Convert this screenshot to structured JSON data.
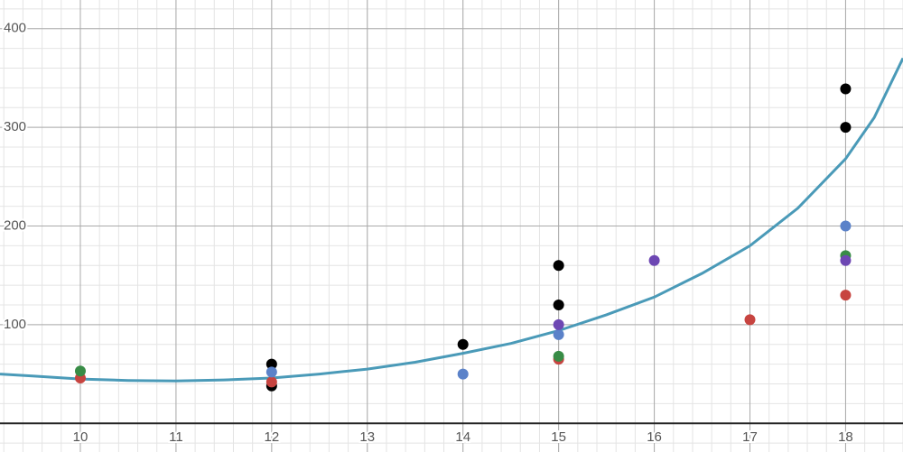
{
  "chart_data": {
    "type": "scatter",
    "xlim": [
      9.16,
      18.6
    ],
    "ylim": [
      -29,
      429
    ],
    "xticks": [
      10,
      11,
      12,
      13,
      14,
      15,
      16,
      17,
      18
    ],
    "yticks": [
      100,
      200,
      300,
      400
    ],
    "grid": true,
    "minor_grid_divisions": 5,
    "series": [
      {
        "type": "line",
        "color": "#4a9ab8",
        "x": [
          9.16,
          9.5,
          10,
          10.5,
          11,
          11.5,
          12,
          12.5,
          13,
          13.5,
          14,
          14.5,
          15,
          15.5,
          16,
          16.5,
          17,
          17.5,
          18,
          18.3,
          18.6
        ],
        "values": [
          50,
          48,
          45,
          43.5,
          43,
          44,
          46,
          50,
          55,
          62,
          71,
          81,
          94,
          110,
          128,
          152,
          180,
          218,
          268,
          310,
          370
        ]
      },
      {
        "type": "scatter",
        "color": "#000000",
        "x": [
          12,
          12,
          14,
          15,
          15,
          18,
          18
        ],
        "values": [
          60,
          38,
          80,
          160,
          120,
          339,
          300
        ]
      },
      {
        "type": "scatter",
        "color": "#c74440",
        "x": [
          10,
          12,
          15,
          17,
          18
        ],
        "values": [
          46,
          42,
          65,
          105,
          130
        ]
      },
      {
        "type": "scatter",
        "color": "#388c46",
        "x": [
          10,
          15,
          18
        ],
        "values": [
          53,
          68,
          170
        ]
      },
      {
        "type": "scatter",
        "color": "#5b82c9",
        "x": [
          12,
          14,
          15,
          18
        ],
        "values": [
          52,
          50,
          90,
          200
        ]
      },
      {
        "type": "scatter",
        "color": "#6d47b3",
        "x": [
          15,
          16,
          18
        ],
        "values": [
          100,
          165,
          165
        ]
      }
    ]
  }
}
